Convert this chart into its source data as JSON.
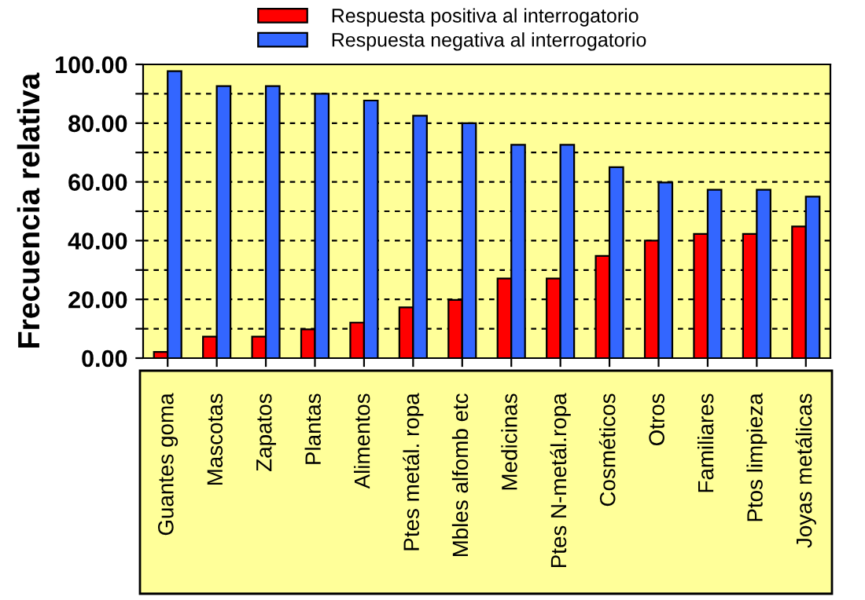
{
  "chart_data": {
    "type": "bar",
    "ylabel": "Frecuencia relativa",
    "categories": [
      "Guantes goma",
      "Mascotas",
      "Zapatos",
      "Plantas",
      "Alimentos",
      "Ptes metál. ropa",
      "Mbles alfomb etc",
      "Medicinas",
      "Ptes N-metál.ropa",
      "Cosméticos",
      "Otros",
      "Familiares",
      "Ptos limpieza",
      "Joyas metálicas"
    ],
    "series": [
      {
        "name": "Respuesta positiva al interrogatorio",
        "color": "#ff0000",
        "values": [
          2.1,
          7.3,
          7.3,
          9.8,
          12.1,
          17.3,
          19.8,
          27.1,
          27.1,
          34.8,
          40,
          42.3,
          42.3,
          44.8
        ]
      },
      {
        "name": "Respuesta negativa al interrogatorio",
        "color": "#3366ff",
        "values": [
          97.7,
          92.6,
          92.6,
          90,
          87.7,
          82.5,
          80,
          72.6,
          72.6,
          65,
          59.8,
          57.3,
          57.3,
          55
        ]
      }
    ],
    "ylim": [
      0,
      100
    ],
    "yticks": [
      {
        "value": 0,
        "label": "0.00"
      },
      {
        "value": 10,
        "label": null
      },
      {
        "value": 20,
        "label": "20.00"
      },
      {
        "value": 30,
        "label": null
      },
      {
        "value": 40,
        "label": "40.00"
      },
      {
        "value": 50,
        "label": null
      },
      {
        "value": 60,
        "label": "60.00"
      },
      {
        "value": 70,
        "label": null
      },
      {
        "value": 80,
        "label": "80.00"
      },
      {
        "value": 90,
        "label": null
      },
      {
        "value": 100,
        "label": "100.00"
      }
    ],
    "grid": "y",
    "legend": "top"
  }
}
